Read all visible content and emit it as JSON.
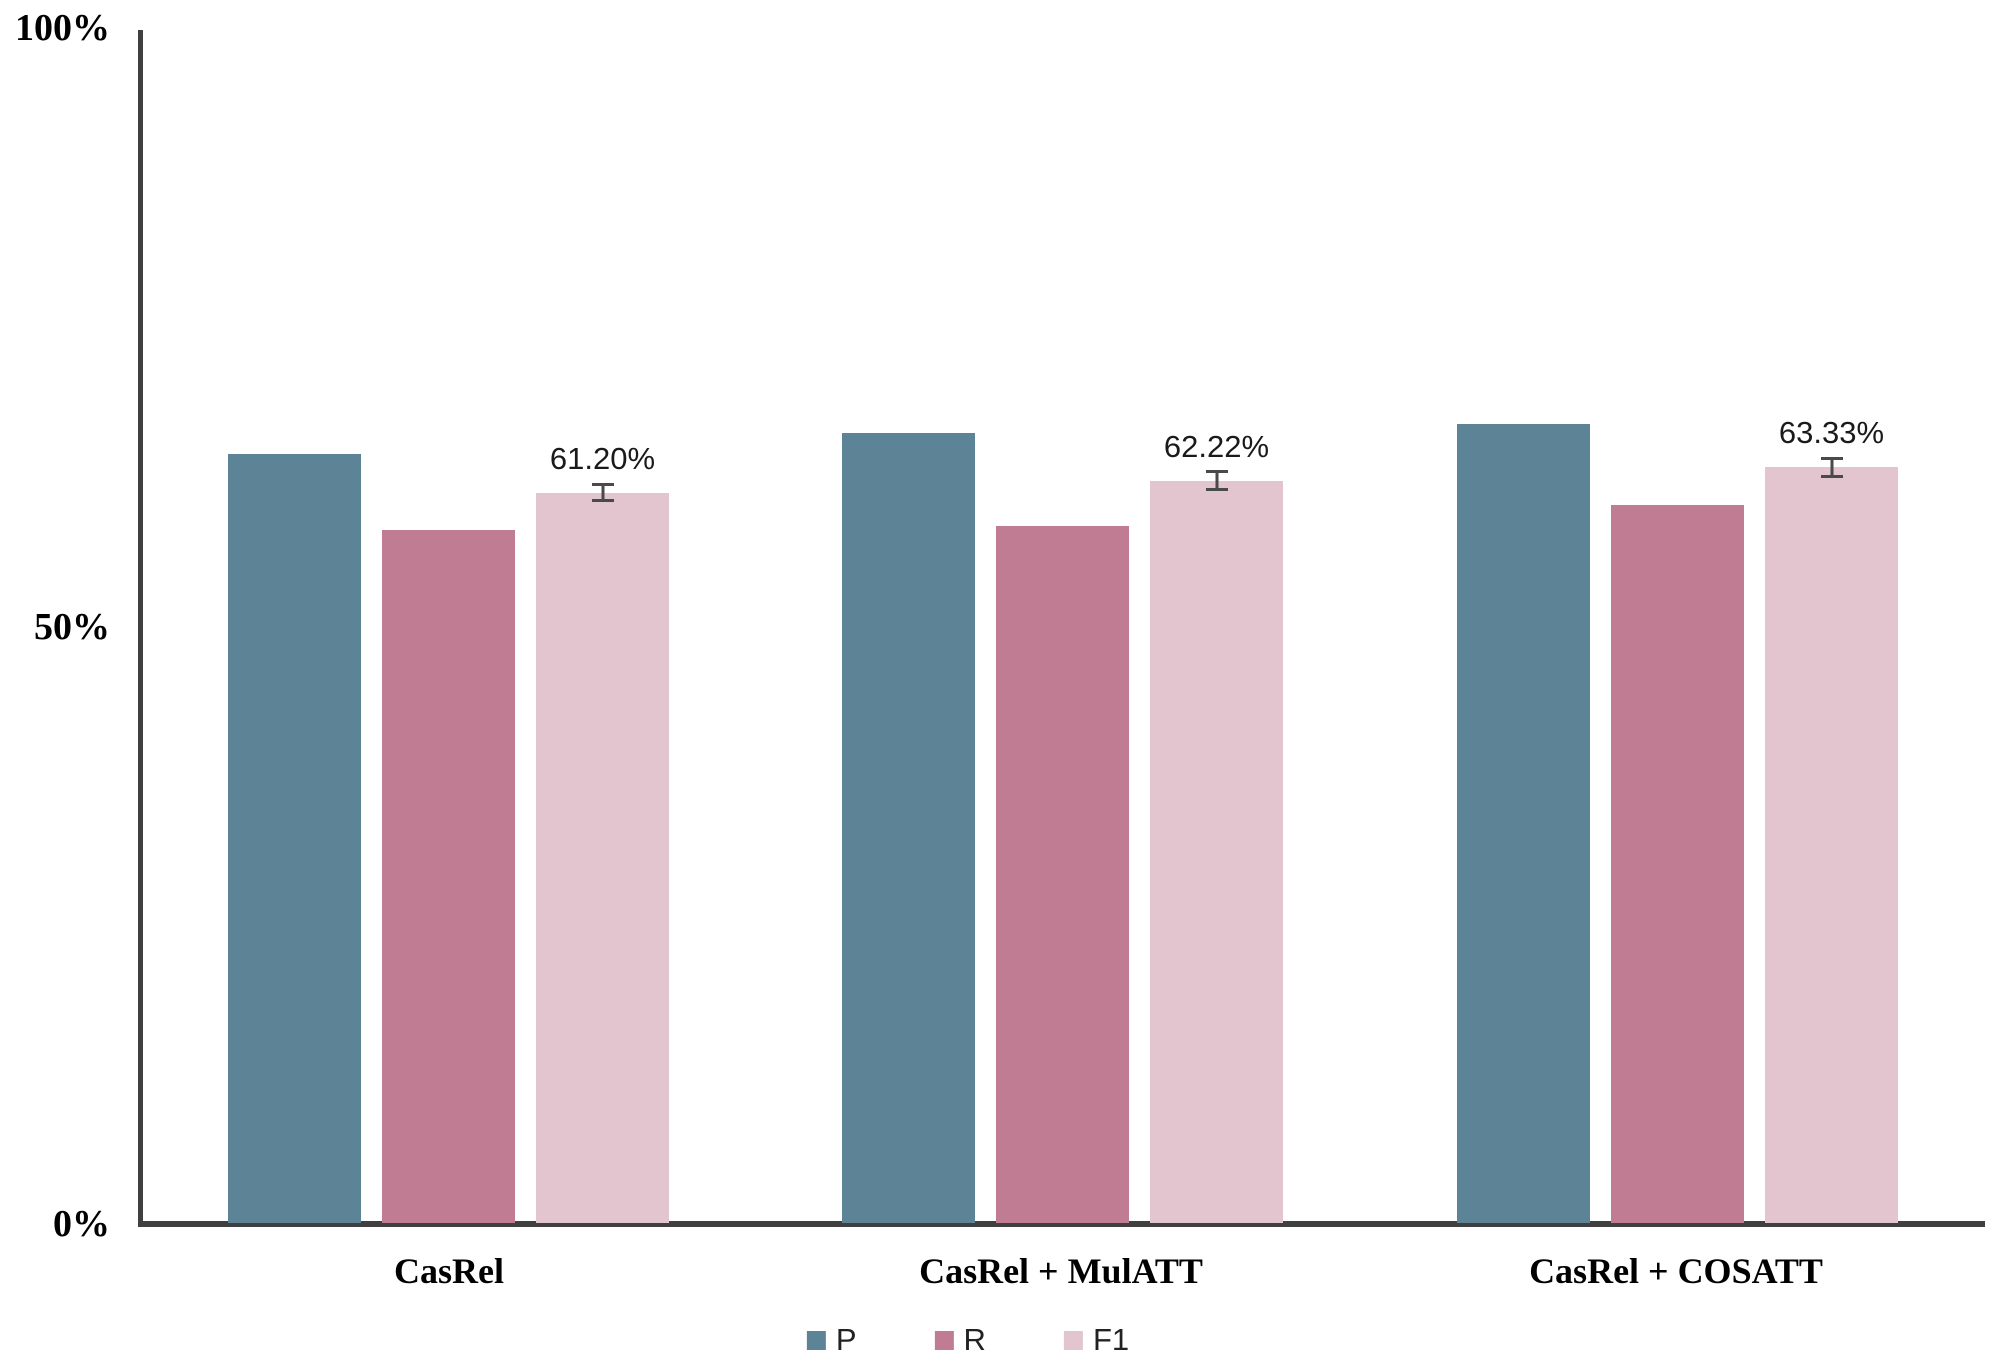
{
  "chart_data": {
    "type": "bar",
    "title": "",
    "xlabel": "",
    "ylabel": "",
    "categories": [
      "CasRel",
      "CasRel + MulATT",
      "CasRel + COSATT"
    ],
    "series": [
      {
        "name": "P",
        "color": "#5d8496",
        "values": [
          64.5,
          66.2,
          67.0
        ]
      },
      {
        "name": "R",
        "color": "#c07c92",
        "values": [
          58.1,
          58.4,
          60.2
        ]
      },
      {
        "name": "F1",
        "color": "#e3c5cf",
        "values": [
          61.2,
          62.22,
          63.33
        ],
        "data_labels": [
          "61.20%",
          "62.22%",
          "63.33%"
        ],
        "error_bars": [
          0.8,
          0.9,
          0.85
        ]
      }
    ],
    "ylim": [
      0,
      100
    ],
    "y_ticks": [
      "0%",
      "50%",
      "100%"
    ],
    "grid": false,
    "legend_position": "bottom",
    "axis_color": "#404040",
    "error_bar_color": "#4a4a4a",
    "background_color": "#ffffff"
  }
}
